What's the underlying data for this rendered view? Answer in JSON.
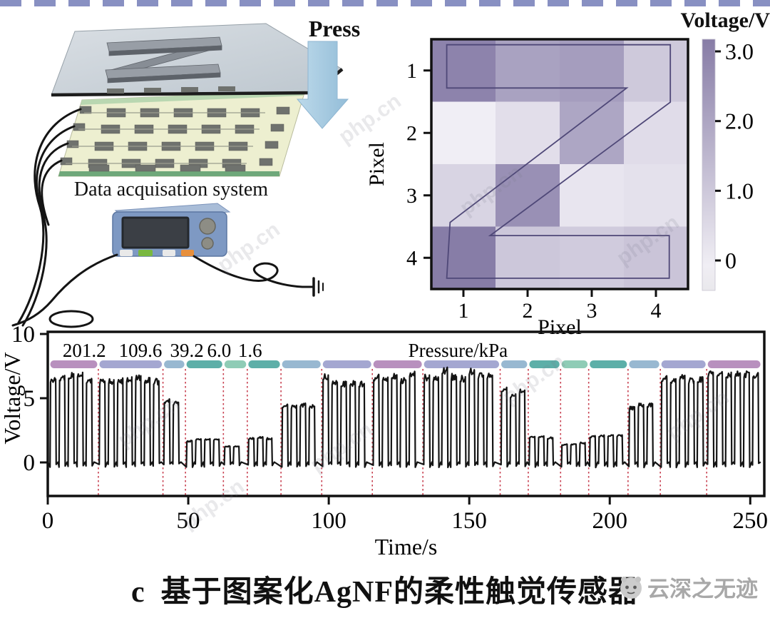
{
  "figure": {
    "caption_prefix": "c",
    "caption_text": "基于图案化AgNF的柔性触觉传感器",
    "brand_watermark": "云深之无迹",
    "site_watermark": "php.cn"
  },
  "schematic": {
    "press_label": "Press",
    "daq_label": "Data acquisation system",
    "press_arrow_color": "#a6cbe2",
    "glass_color": "#c5cdd5",
    "substrate_color": "#edefd0",
    "daq_body_color": "#7e99c3"
  },
  "heatmap": {
    "title": "Voltage/V",
    "xlabel": "Pixel",
    "ylabel": "Pixel",
    "x_ticks": [
      "1",
      "2",
      "3",
      "4"
    ],
    "y_ticks": [
      "1",
      "2",
      "3",
      "4"
    ],
    "colorbar_tick_labels": [
      "3.0",
      "2.0",
      "1.0",
      "0"
    ],
    "colorbar_tick_values": [
      3.0,
      2.0,
      1.0,
      0
    ],
    "vmin": 0,
    "vmax": 3,
    "color_low": "#f6f4f9",
    "color_high": "#7d72a0",
    "outline_color": "#4f4878",
    "values": [
      [
        2.6,
        1.9,
        2.0,
        1.0
      ],
      [
        0.15,
        0.5,
        1.8,
        0.55
      ],
      [
        0.75,
        2.3,
        0.35,
        0.45
      ],
      [
        2.75,
        1.05,
        0.95,
        1.1
      ]
    ],
    "z_outline": [
      [
        0.06,
        0.022
      ],
      [
        0.931,
        0.022
      ],
      [
        0.931,
        0.252
      ],
      [
        0.229,
        0.786
      ],
      [
        0.927,
        0.786
      ],
      [
        0.927,
        0.957
      ],
      [
        0.06,
        0.957
      ],
      [
        0.073,
        0.733
      ],
      [
        0.761,
        0.195
      ],
      [
        0.06,
        0.195
      ]
    ]
  },
  "timeseries": {
    "ylabel": "Voltage/V",
    "xlabel": "Time/s",
    "pressure_title": "Pressure/kPa",
    "pressure_title_t": 146,
    "x_ticks": [
      0,
      50,
      100,
      150,
      200,
      250
    ],
    "y_ticks": [
      10,
      5,
      0
    ],
    "xlim": [
      0,
      255
    ],
    "dash_color": "#c84050",
    "line_color": "#141414",
    "pressure_labels": [
      {
        "text": "201.2",
        "t": 13
      },
      {
        "text": "109.6",
        "t": 33
      },
      {
        "text": "39.2",
        "t": 49.5
      },
      {
        "text": "6.0",
        "t": 61
      },
      {
        "text": "1.6",
        "t": 72
      }
    ],
    "segments": [
      {
        "t0": 0.5,
        "t1": 18,
        "amp": 6.9,
        "color": "#b287b8",
        "pressure_kPa": 201.2
      },
      {
        "t0": 18,
        "t1": 41,
        "amp": 6.6,
        "color": "#9c9fcd",
        "pressure_kPa": 109.6
      },
      {
        "t0": 41,
        "t1": 49,
        "amp": 5.0,
        "color": "#8fb2cd",
        "pressure_kPa": 39.2
      },
      {
        "t0": 49,
        "t1": 62.5,
        "amp": 1.8,
        "color": "#4fa8a1",
        "pressure_kPa": 6.0
      },
      {
        "t0": 62.5,
        "t1": 71,
        "amp": 1.3,
        "color": "#85c8b0",
        "pressure_kPa": 1.6
      },
      {
        "t0": 71,
        "t1": 83,
        "amp": 1.9,
        "color": "#4fa8a1"
      },
      {
        "t0": 83,
        "t1": 97.5,
        "amp": 4.6,
        "color": "#8fb2cd"
      },
      {
        "t0": 97.5,
        "t1": 115.5,
        "amp": 6.6,
        "color": "#9c9fcd"
      },
      {
        "t0": 115.5,
        "t1": 133.5,
        "amp": 6.9,
        "color": "#b287b8"
      },
      {
        "t0": 133.5,
        "t1": 161,
        "amp": 7.0,
        "color": "#9c9fcd"
      },
      {
        "t0": 161,
        "t1": 171,
        "amp": 5.6,
        "color": "#8fb2cd"
      },
      {
        "t0": 171,
        "t1": 182.5,
        "amp": 2.0,
        "color": "#4fa8a1"
      },
      {
        "t0": 182.5,
        "t1": 192.5,
        "amp": 1.5,
        "color": "#85c8b0"
      },
      {
        "t0": 192.5,
        "t1": 206.5,
        "amp": 2.1,
        "color": "#4fa8a1"
      },
      {
        "t0": 206.5,
        "t1": 218,
        "amp": 4.6,
        "color": "#8fb2cd"
      },
      {
        "t0": 218,
        "t1": 234.5,
        "amp": 6.5,
        "color": "#9c9fcd"
      },
      {
        "t0": 234.5,
        "t1": 254,
        "amp": 6.9,
        "color": "#b287b8"
      }
    ]
  },
  "chart_data": [
    {
      "type": "heatmap",
      "title": "Voltage/V",
      "xlabel": "Pixel",
      "ylabel": "Pixel",
      "x": [
        1,
        2,
        3,
        4
      ],
      "y": [
        1,
        2,
        3,
        4
      ],
      "values_V": [
        [
          2.6,
          1.9,
          2.0,
          1.0
        ],
        [
          0.15,
          0.5,
          1.8,
          0.55
        ],
        [
          0.75,
          2.3,
          0.35,
          0.45
        ],
        [
          2.75,
          1.05,
          0.95,
          1.1
        ]
      ],
      "colorbar_range": [
        0,
        3.0
      ],
      "annotation": "Z letter outline overlaid on pressed pixels"
    },
    {
      "type": "line",
      "xlabel": "Time/s",
      "ylabel": "Voltage/V",
      "xlim": [
        0,
        255
      ],
      "ylim": [
        -2.6,
        10.2
      ],
      "y_ticks": [
        0,
        5,
        10
      ],
      "x_ticks": [
        0,
        50,
        100,
        150,
        200,
        250
      ],
      "annotation_title": "Pressure/kPa",
      "annotation_pressures_kPa": [
        201.2,
        109.6,
        39.2,
        6.0,
        1.6
      ],
      "series_description": "square pressure pulses, period ~3.2 s",
      "plateau_V_by_interval": [
        {
          "t": [
            0.5,
            18
          ],
          "V": 6.9
        },
        {
          "t": [
            18,
            41
          ],
          "V": 6.6
        },
        {
          "t": [
            41,
            49
          ],
          "V": 5.0
        },
        {
          "t": [
            49,
            62.5
          ],
          "V": 1.8
        },
        {
          "t": [
            62.5,
            71
          ],
          "V": 1.3
        },
        {
          "t": [
            71,
            83
          ],
          "V": 1.9
        },
        {
          "t": [
            83,
            97.5
          ],
          "V": 4.6
        },
        {
          "t": [
            97.5,
            115.5
          ],
          "V": 6.6
        },
        {
          "t": [
            115.5,
            133.5
          ],
          "V": 6.9
        },
        {
          "t": [
            133.5,
            161
          ],
          "V": 7.0
        },
        {
          "t": [
            161,
            171
          ],
          "V": 5.6
        },
        {
          "t": [
            171,
            182.5
          ],
          "V": 2.0
        },
        {
          "t": [
            182.5,
            192.5
          ],
          "V": 1.5
        },
        {
          "t": [
            192.5,
            206.5
          ],
          "V": 2.1
        },
        {
          "t": [
            206.5,
            218
          ],
          "V": 4.6
        },
        {
          "t": [
            218,
            234.5
          ],
          "V": 6.5
        },
        {
          "t": [
            234.5,
            254
          ],
          "V": 6.9
        }
      ]
    }
  ]
}
